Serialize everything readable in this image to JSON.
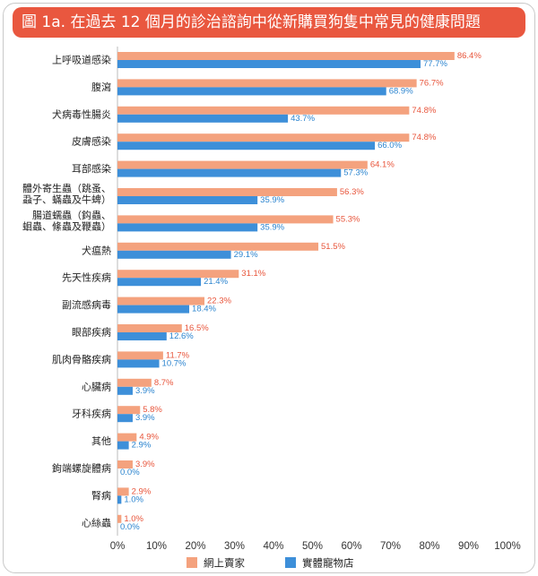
{
  "theme": {
    "title_bg": "#E9573F",
    "axis_color": "#BBBBBB"
  },
  "chart_data": {
    "type": "bar",
    "orientation": "horizontal",
    "title": "圖 1a. 在過去 12 個月的診治諮詢中從新購買狗隻中常見的健康問題",
    "categories": [
      "上呼吸道感染",
      "腹瀉",
      "犬病毒性腸炎",
      "皮膚感染",
      "耳部感染",
      "體外寄生蟲（跳蚤、\n蝨子、蟎蟲及牛蜱）",
      "腸道蠕蟲（鈎蟲、\n蛔蟲、絛蟲及鞭蟲）",
      "犬瘟熱",
      "先天性疾病",
      "副流感病毒",
      "眼部疾病",
      "肌肉骨骼疾病",
      "心臟病",
      "牙科疾病",
      "其他",
      "鉤端螺旋體病",
      "腎病",
      "心絲蟲"
    ],
    "series": [
      {
        "name": "網上賣家",
        "color": "#F4A27E",
        "label_color": "#E8553B",
        "values": [
          86.4,
          76.7,
          74.8,
          74.8,
          64.1,
          56.3,
          55.3,
          51.5,
          31.1,
          22.3,
          16.5,
          11.7,
          8.7,
          5.8,
          4.9,
          3.9,
          2.9,
          1.0
        ]
      },
      {
        "name": "實體寵物店",
        "color": "#3D8FD9",
        "label_color": "#2B84CF",
        "values": [
          77.7,
          68.9,
          43.7,
          66.0,
          57.3,
          35.9,
          35.9,
          29.1,
          21.4,
          18.4,
          12.6,
          10.7,
          3.9,
          3.9,
          2.9,
          0.0,
          1.0,
          0.0
        ]
      }
    ],
    "xlim": [
      0,
      100
    ],
    "x_ticks": [
      "0%",
      "10%",
      "20%",
      "30%",
      "40%",
      "50%",
      "60%",
      "70%",
      "80%",
      "90%",
      "100%"
    ],
    "grid": false,
    "legend": "bottom"
  }
}
